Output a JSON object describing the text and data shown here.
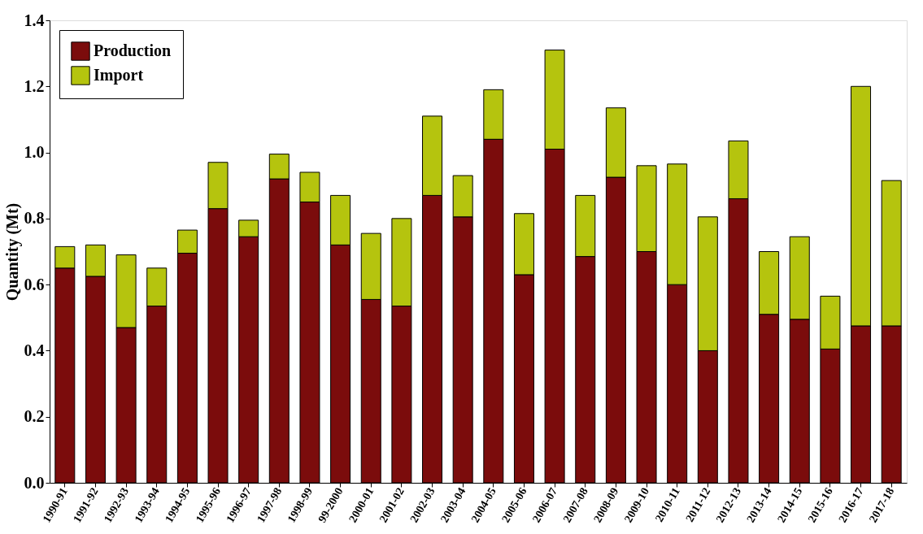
{
  "chart_data": {
    "type": "bar",
    "stacked": true,
    "ylabel": "Quantity (Mt)",
    "categories": [
      "1990-91",
      "1991-92",
      "1992-93",
      "1993-94",
      "1994-95",
      "1995-96",
      "1996-97",
      "1997-98",
      "1998-99",
      "99-2000",
      "2000-01",
      "2001-02",
      "2002-03",
      "2003-04",
      "2004-05",
      "2005-06",
      "2006-07",
      "2007-08",
      "2008-09",
      "2009-10",
      "2010-11",
      "2011-12",
      "2012-13",
      "2013-14",
      "2014-15",
      "2015-16",
      "2016-17",
      "2017-18"
    ],
    "series": [
      {
        "name": "Production",
        "color": "#7b0c0c",
        "values": [
          0.65,
          0.625,
          0.47,
          0.535,
          0.695,
          0.83,
          0.745,
          0.92,
          0.85,
          0.72,
          0.555,
          0.535,
          0.87,
          0.805,
          1.04,
          0.63,
          1.01,
          0.685,
          0.925,
          0.7,
          0.6,
          0.4,
          0.86,
          0.51,
          0.495,
          0.405,
          0.475,
          0.475
        ]
      },
      {
        "name": "Import",
        "color": "#b5c40e",
        "values": [
          0.065,
          0.095,
          0.22,
          0.115,
          0.07,
          0.14,
          0.05,
          0.075,
          0.09,
          0.15,
          0.2,
          0.265,
          0.24,
          0.125,
          0.15,
          0.185,
          0.3,
          0.185,
          0.21,
          0.26,
          0.365,
          0.405,
          0.175,
          0.19,
          0.25,
          0.16,
          0.725,
          0.44
        ]
      }
    ],
    "ylim": [
      0,
      1.4
    ],
    "yticks": [
      {
        "value": 0,
        "label": "0.0"
      },
      0.2,
      0.4,
      0.6,
      0.8,
      {
        "value": 1,
        "label": "1.0"
      },
      1.2,
      1.4
    ],
    "legend": "top left",
    "grid": false
  }
}
